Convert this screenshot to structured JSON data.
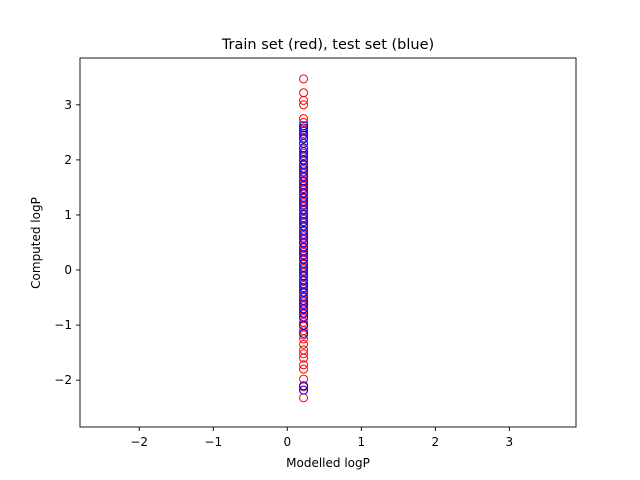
{
  "chart_data": {
    "type": "scatter",
    "title": "Train set (red), test set (blue)",
    "xlabel": "Modelled logP",
    "ylabel": "Computed logP",
    "xlim": [
      -2.8,
      3.9
    ],
    "ylim": [
      -2.85,
      3.85
    ],
    "xticks": [
      -2,
      -1,
      0,
      1,
      2,
      3
    ],
    "yticks": [
      -2,
      -1,
      0,
      1,
      2,
      3
    ],
    "xtick_labels": [
      "−2",
      "−1",
      "0",
      "1",
      "2",
      "3"
    ],
    "ytick_labels": [
      "−2",
      "−1",
      "0",
      "1",
      "2",
      "3"
    ],
    "grid": false,
    "marker": "open-circle",
    "series": [
      {
        "color": "#ff0000",
        "x_value": 0.22,
        "y": [
          3.47,
          3.22,
          3.08,
          3.0,
          2.75,
          2.68,
          2.55,
          2.48,
          2.4,
          2.3,
          2.2,
          2.12,
          2.05,
          1.98,
          1.9,
          1.82,
          1.75,
          1.68,
          1.6,
          1.52,
          1.45,
          1.38,
          1.3,
          1.22,
          1.15,
          1.08,
          1.0,
          0.92,
          0.85,
          0.78,
          0.7,
          0.62,
          0.55,
          0.48,
          0.4,
          0.32,
          0.25,
          0.18,
          0.1,
          0.02,
          -0.05,
          -0.12,
          -0.2,
          -0.28,
          -0.35,
          -0.42,
          -0.5,
          -0.58,
          -0.65,
          -0.72,
          -0.8,
          -0.88,
          -0.95,
          -1.02,
          -1.1,
          -1.18,
          -1.25,
          -1.35,
          -1.45,
          -1.52,
          -1.6,
          -1.72,
          -1.8,
          -1.98,
          -2.12,
          -2.18,
          -2.32
        ]
      },
      {
        "color": "#0000ff",
        "x_value": 0.22,
        "y": [
          2.62,
          2.58,
          2.52,
          2.45,
          2.38,
          2.3,
          2.22,
          2.15,
          2.08,
          2.0,
          1.92,
          1.85,
          1.78,
          1.7,
          1.62,
          1.55,
          1.48,
          1.4,
          1.32,
          1.25,
          1.18,
          1.1,
          1.02,
          0.95,
          0.88,
          0.8,
          0.72,
          0.65,
          0.58,
          0.5,
          0.42,
          0.35,
          0.28,
          0.2,
          0.12,
          0.05,
          -0.02,
          -0.1,
          -0.18,
          -0.25,
          -0.32,
          -0.4,
          -0.48,
          -0.55,
          -0.62,
          -0.7,
          -0.78,
          -0.85,
          -1.0,
          -1.15,
          -2.1,
          -2.18
        ]
      }
    ]
  }
}
